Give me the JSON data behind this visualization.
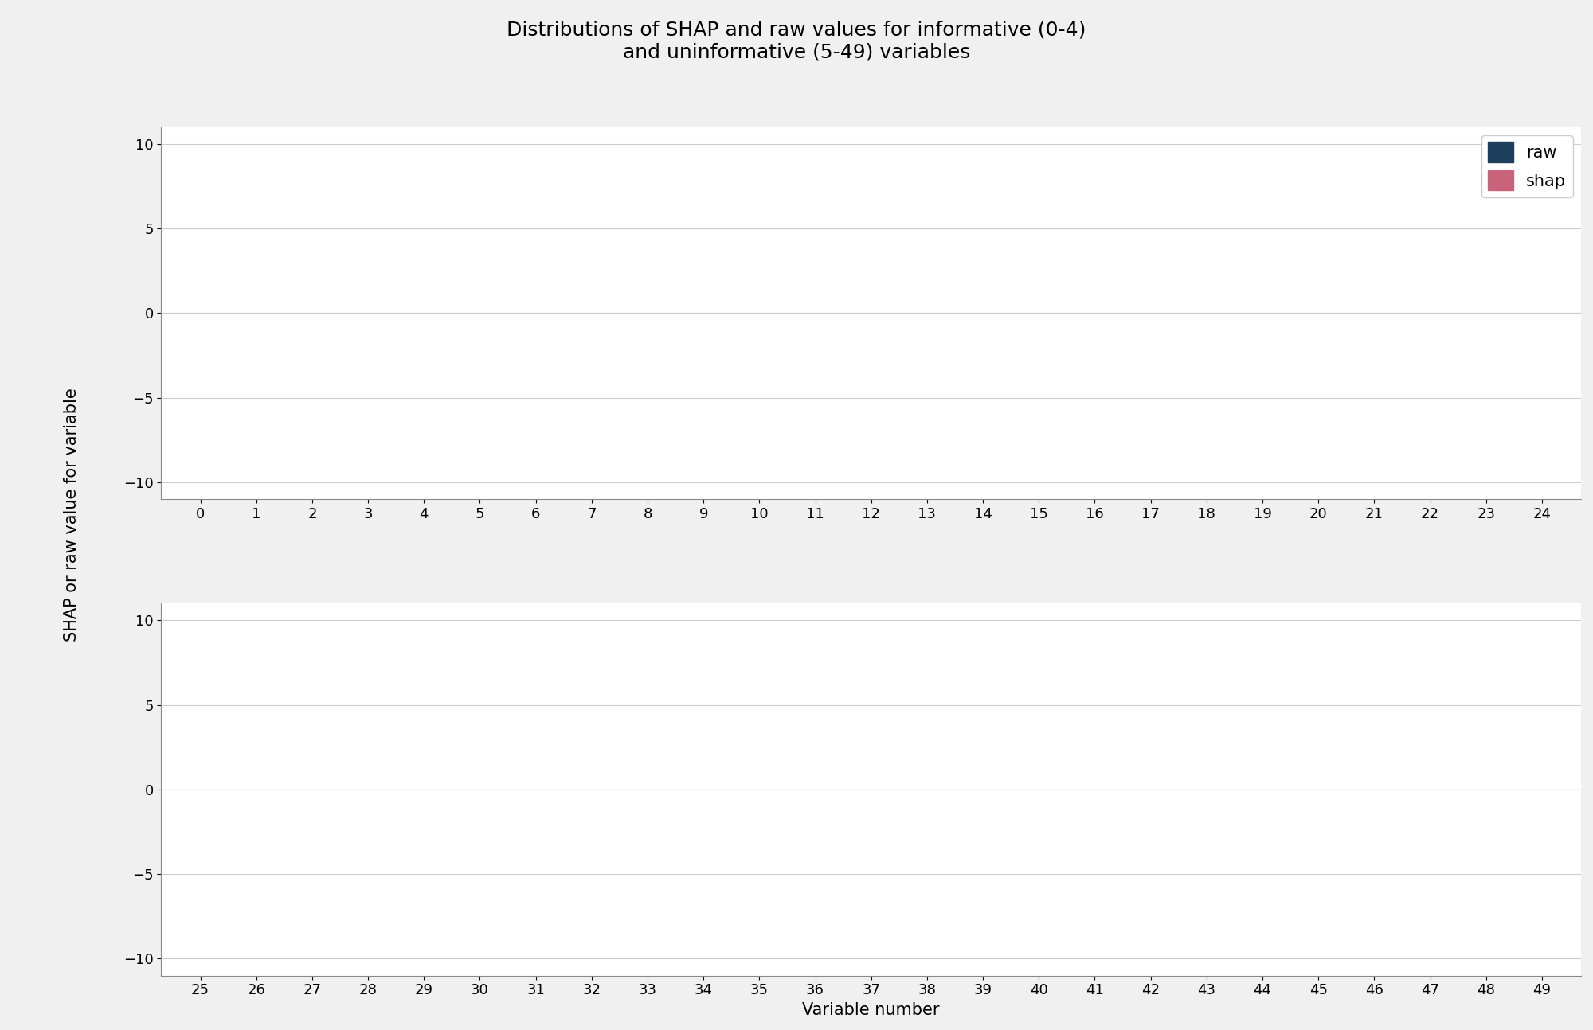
{
  "title": "Distributions of SHAP and raw values for informative (0-4)\nand uninformative (5-49) variables",
  "ylabel": "SHAP or raw value for variable",
  "xlabel": "Variable number",
  "ylim": [
    -11,
    11
  ],
  "yticks": [
    -10,
    -5,
    0,
    5,
    10
  ],
  "raw_color": "#1d3f5e",
  "shap_color": "#c9637c",
  "background_color": "#f0f0f0",
  "subplot_bg": "#ffffff",
  "grid_color": "#cccccc",
  "title_fontsize": 18,
  "label_fontsize": 15,
  "tick_fontsize": 13,
  "violin_width": 0.38
}
